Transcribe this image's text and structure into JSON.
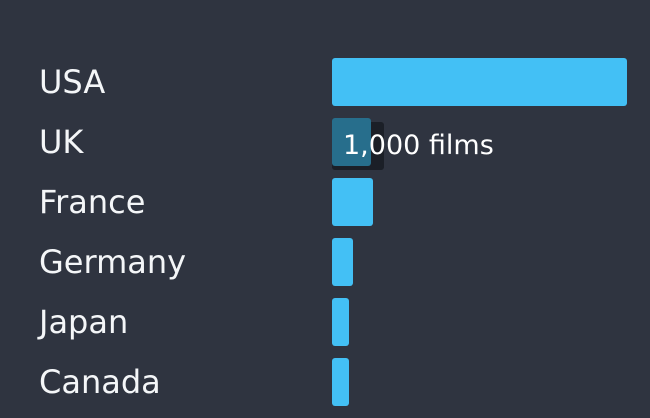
{
  "chart_data": {
    "type": "bar",
    "orientation": "horizontal",
    "categories": [
      "USA",
      "UK",
      "France",
      "Germany",
      "Japan",
      "Canada"
    ],
    "values": [
      7500,
      1000,
      1000,
      500,
      400,
      400
    ],
    "xlim": [
      0,
      7500
    ],
    "grid": false,
    "hovered_index": 1,
    "tooltip": "1,000 films",
    "bar_color": "#43c0f5",
    "hover_color": "#276e8c",
    "background": "#2f3440"
  }
}
